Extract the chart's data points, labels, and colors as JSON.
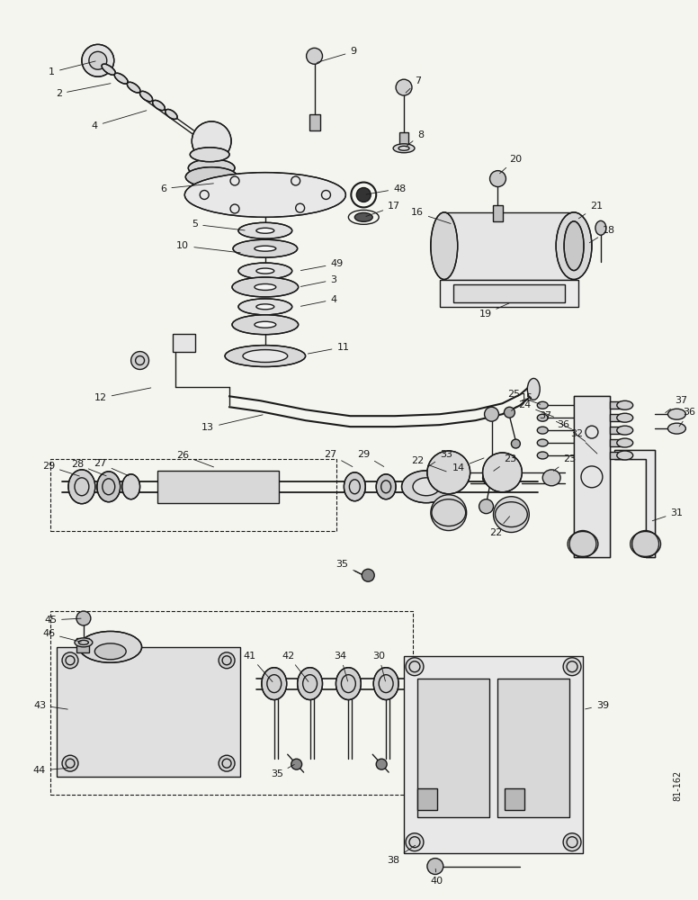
{
  "bg_color": "#f5f5f0",
  "figsize": [
    7.76,
    10.0
  ],
  "dpi": 100,
  "note_text": "81-162",
  "line_color": "#1a1a1a",
  "gray1": "#888888",
  "gray2": "#cccccc",
  "gray3": "#444444"
}
